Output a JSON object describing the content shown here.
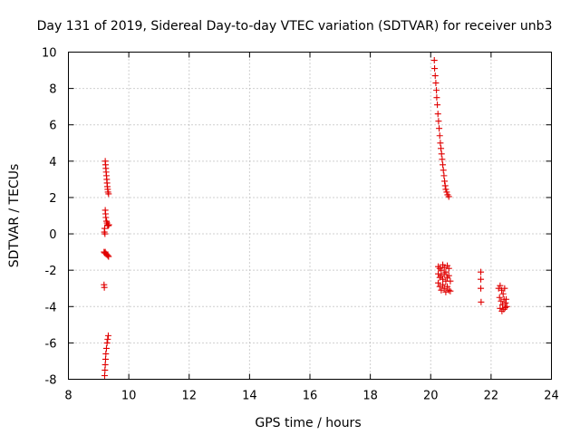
{
  "chart_data": {
    "type": "scatter",
    "title": "Day 131 of 2019, Sidereal Day-to-day VTEC variation (SDTVAR) for receiver unb3",
    "xlabel": "GPS time / hours",
    "ylabel": "SDTVAR / TECUs",
    "xlim": [
      8,
      24
    ],
    "ylim": [
      -8,
      10
    ],
    "xticks": [
      8,
      10,
      12,
      14,
      16,
      18,
      20,
      22,
      24
    ],
    "yticks": [
      -8,
      -6,
      -4,
      -2,
      0,
      2,
      4,
      6,
      8,
      10
    ],
    "grid": true,
    "marker": "plus",
    "series": [
      {
        "name": "SDTVAR",
        "color": "#e00000",
        "points": [
          [
            9.22,
            4.0
          ],
          [
            9.23,
            3.8
          ],
          [
            9.24,
            3.6
          ],
          [
            9.25,
            3.4
          ],
          [
            9.26,
            3.2
          ],
          [
            9.27,
            3.0
          ],
          [
            9.28,
            2.8
          ],
          [
            9.29,
            2.6
          ],
          [
            9.3,
            2.45
          ],
          [
            9.31,
            2.3
          ],
          [
            9.33,
            2.2
          ],
          [
            9.22,
            1.3
          ],
          [
            9.23,
            1.1
          ],
          [
            9.24,
            0.9
          ],
          [
            9.26,
            0.7
          ],
          [
            9.28,
            0.6
          ],
          [
            9.3,
            0.5
          ],
          [
            9.32,
            0.45
          ],
          [
            9.34,
            0.5
          ],
          [
            9.2,
            0.3
          ],
          [
            9.19,
            0.1
          ],
          [
            9.21,
            0.0
          ],
          [
            9.18,
            -1.0
          ],
          [
            9.2,
            -1.05
          ],
          [
            9.22,
            -1.0
          ],
          [
            9.25,
            -1.1
          ],
          [
            9.28,
            -1.15
          ],
          [
            9.31,
            -1.2
          ],
          [
            9.33,
            -1.25
          ],
          [
            9.18,
            -2.8
          ],
          [
            9.19,
            -2.95
          ],
          [
            9.2,
            -7.8
          ],
          [
            9.21,
            -7.5
          ],
          [
            9.22,
            -7.2
          ],
          [
            9.23,
            -6.9
          ],
          [
            9.24,
            -6.6
          ],
          [
            9.26,
            -6.3
          ],
          [
            9.28,
            -6.0
          ],
          [
            9.3,
            -5.8
          ],
          [
            9.32,
            -5.6
          ],
          [
            20.12,
            9.55
          ],
          [
            20.13,
            9.1
          ],
          [
            20.15,
            8.7
          ],
          [
            20.17,
            8.3
          ],
          [
            20.19,
            7.9
          ],
          [
            20.2,
            7.5
          ],
          [
            20.22,
            7.1
          ],
          [
            20.24,
            6.6
          ],
          [
            20.26,
            6.2
          ],
          [
            20.28,
            5.8
          ],
          [
            20.3,
            5.4
          ],
          [
            20.32,
            5.0
          ],
          [
            20.34,
            4.7
          ],
          [
            20.36,
            4.4
          ],
          [
            20.38,
            4.1
          ],
          [
            20.4,
            3.8
          ],
          [
            20.42,
            3.5
          ],
          [
            20.44,
            3.2
          ],
          [
            20.46,
            2.9
          ],
          [
            20.48,
            2.65
          ],
          [
            20.5,
            2.45
          ],
          [
            20.53,
            2.3
          ],
          [
            20.56,
            2.15
          ],
          [
            20.6,
            2.05
          ],
          [
            20.25,
            -1.8
          ],
          [
            20.3,
            -1.9
          ],
          [
            20.35,
            -2.0
          ],
          [
            20.4,
            -1.7
          ],
          [
            20.45,
            -1.85
          ],
          [
            20.5,
            -2.1
          ],
          [
            20.55,
            -1.75
          ],
          [
            20.6,
            -1.9
          ],
          [
            20.25,
            -2.2
          ],
          [
            20.3,
            -2.4
          ],
          [
            20.35,
            -2.3
          ],
          [
            20.4,
            -2.5
          ],
          [
            20.45,
            -2.2
          ],
          [
            20.5,
            -2.6
          ],
          [
            20.55,
            -2.4
          ],
          [
            20.6,
            -2.3
          ],
          [
            20.25,
            -2.7
          ],
          [
            20.3,
            -2.9
          ],
          [
            20.35,
            -3.1
          ],
          [
            20.4,
            -2.8
          ],
          [
            20.45,
            -3.0
          ],
          [
            20.5,
            -3.2
          ],
          [
            20.55,
            -2.9
          ],
          [
            20.6,
            -3.1
          ],
          [
            20.65,
            -2.6
          ],
          [
            20.65,
            -3.15
          ],
          [
            21.66,
            -2.1
          ],
          [
            21.66,
            -2.5
          ],
          [
            21.66,
            -3.0
          ],
          [
            21.67,
            -3.75
          ],
          [
            22.25,
            -3.0
          ],
          [
            22.3,
            -2.85
          ],
          [
            22.35,
            -3.1
          ],
          [
            22.4,
            -3.3
          ],
          [
            22.45,
            -3.0
          ],
          [
            22.5,
            -3.6
          ],
          [
            22.28,
            -3.5
          ],
          [
            22.33,
            -3.7
          ],
          [
            22.38,
            -3.9
          ],
          [
            22.43,
            -3.6
          ],
          [
            22.48,
            -3.8
          ],
          [
            22.52,
            -4.0
          ],
          [
            22.3,
            -4.1
          ],
          [
            22.36,
            -4.25
          ],
          [
            22.42,
            -4.15
          ],
          [
            22.47,
            -4.05
          ]
        ]
      }
    ]
  }
}
